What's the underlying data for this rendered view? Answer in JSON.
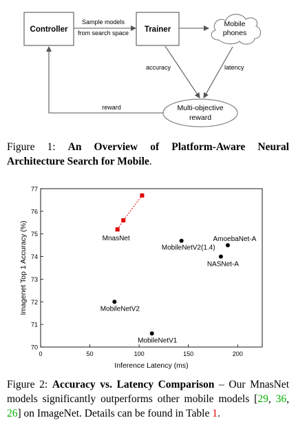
{
  "figure1": {
    "controller": "Controller",
    "trainer": "Trainer",
    "mobile_line1": "Mobile",
    "mobile_line2": "phones",
    "sample_line1": "Sample models",
    "sample_line2": "from search space",
    "accuracy": "accuracy",
    "latency": "latency",
    "reward": "reward",
    "objective_line1": "Multi-objective",
    "objective_line2": "reward",
    "caption_label": "Figure 1: ",
    "caption_bold": "An Overview of Platform-Aware Neural Architecture Search for Mobile",
    "caption_end": "."
  },
  "figure2": {
    "caption_label": "Figure 2: ",
    "caption_bold": "Accuracy vs. Latency Comparison",
    "caption_text": " – Our MnasNet models significantly outperforms other mobile models [",
    "ref1": "29",
    "sep1": ", ",
    "ref2": "36",
    "sep2": ", ",
    "ref3": "26",
    "caption_text2": "] on ImageNet. Details can be found in Table ",
    "ref4": "1",
    "caption_end": "."
  },
  "chart_data": {
    "type": "scatter",
    "xlabel": "Inference Latency (ms)",
    "ylabel": "Imagenet Top 1 Accuracy (%)",
    "xlim": [
      0,
      225
    ],
    "ylim": [
      70,
      77
    ],
    "xticks": [
      0,
      50,
      100,
      150,
      200
    ],
    "yticks": [
      70,
      71,
      72,
      73,
      74,
      75,
      76,
      77
    ],
    "grid": false,
    "colors": {
      "mnasnet": "#e00000",
      "others": "#000000"
    },
    "series": [
      {
        "name": "MnasNet",
        "style": "red-square-dashed",
        "points": [
          {
            "x": 78,
            "y": 75.2
          },
          {
            "x": 84,
            "y": 75.6
          },
          {
            "x": 103,
            "y": 76.7
          }
        ]
      },
      {
        "style": "black-dot",
        "points": [
          {
            "label": "MobileNetV2(1.4)",
            "x": 143,
            "y": 74.7
          },
          {
            "label": "AmoebaNet-A",
            "x": 190,
            "y": 74.5
          },
          {
            "label": "NASNet-A",
            "x": 183,
            "y": 74.0
          },
          {
            "label": "MobileNetV2",
            "x": 75,
            "y": 72.0
          },
          {
            "label": "MobileNetV1",
            "x": 113,
            "y": 70.6
          }
        ]
      }
    ]
  }
}
